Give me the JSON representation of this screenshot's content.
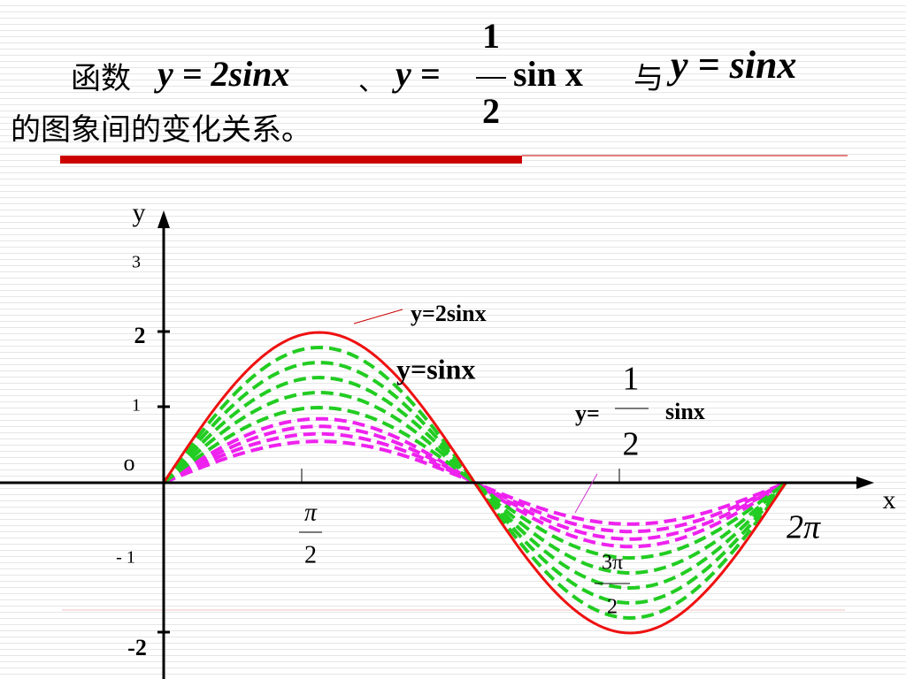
{
  "header": {
    "line1": {
      "prefix": "函数",
      "eq1": "y = 2sinx",
      "sep": "、",
      "eq2_left": "y =",
      "eq2_num": "1",
      "eq2_den": "2",
      "eq2_right": "sin x",
      "conj": "与",
      "eq3": "y = sinx"
    },
    "line2": "的图象间的变化关系。"
  },
  "graph": {
    "x_axis": "x",
    "y_axis": "y",
    "origin": "o",
    "y_ticks": [
      "3",
      "2",
      "1",
      "- 1",
      "-2"
    ],
    "x_ticks": {
      "half_pi": {
        "num": "π",
        "den": "2"
      },
      "three_half_pi": {
        "num": "3π",
        "den": "2"
      },
      "two_pi": "2π"
    },
    "labels": {
      "big": "y=2sinx",
      "unit": "y=sinx",
      "half_left": "y=",
      "half_num": "1",
      "half_den": "2",
      "half_right": "sinx"
    }
  }
}
